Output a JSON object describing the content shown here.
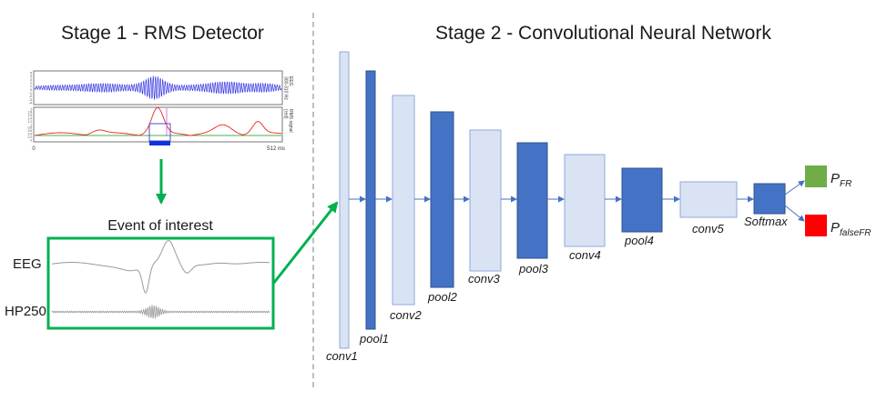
{
  "stage1": {
    "title": "Stage 1 - RMS Detector",
    "eeg_panel_label": "EEG\n300-310 Hz",
    "rms_panel_label": "RMS signal\n(red)",
    "eeg_yticks": [
      "5",
      "4",
      "3",
      "2",
      "1",
      "0",
      "-1",
      "-2",
      "-3",
      "-4"
    ],
    "rms_yticks": [
      "2",
      "1.8",
      "1.6",
      "1.4",
      "1.2",
      "1",
      "0.8",
      "0.6",
      "0.4",
      "0.2",
      "0"
    ],
    "x_start": "0",
    "x_end": "512 ms",
    "event_title": "Event of interest",
    "channel_labels": [
      "EEG",
      "HP250"
    ]
  },
  "stage2": {
    "title": "Stage 2 - Convolutional Neural Network",
    "layers": [
      {
        "name": "conv1",
        "kind": "conv"
      },
      {
        "name": "pool1",
        "kind": "pool"
      },
      {
        "name": "conv2",
        "kind": "conv"
      },
      {
        "name": "pool2",
        "kind": "pool"
      },
      {
        "name": "conv3",
        "kind": "conv"
      },
      {
        "name": "pool3",
        "kind": "pool"
      },
      {
        "name": "conv4",
        "kind": "conv"
      },
      {
        "name": "pool4",
        "kind": "pool"
      },
      {
        "name": "conv5",
        "kind": "conv"
      },
      {
        "name": "Softmax",
        "kind": "pool"
      }
    ],
    "outputs": [
      {
        "name": "FR",
        "prefix": "P",
        "subscript": "FR",
        "color": "#70ad47"
      },
      {
        "name": "falseFR",
        "prefix": "P",
        "subscript": "falseFR",
        "color": "#ff0000"
      }
    ]
  },
  "colors": {
    "conv_fill": "#dae3f3",
    "conv_stroke": "#8faadc",
    "pool_fill": "#4472c4",
    "pool_stroke": "#2f528f",
    "arrow": "#4472c4",
    "green": "#00b050",
    "eeg_wave": "#2222dd",
    "rms_line": "#ee2222"
  }
}
